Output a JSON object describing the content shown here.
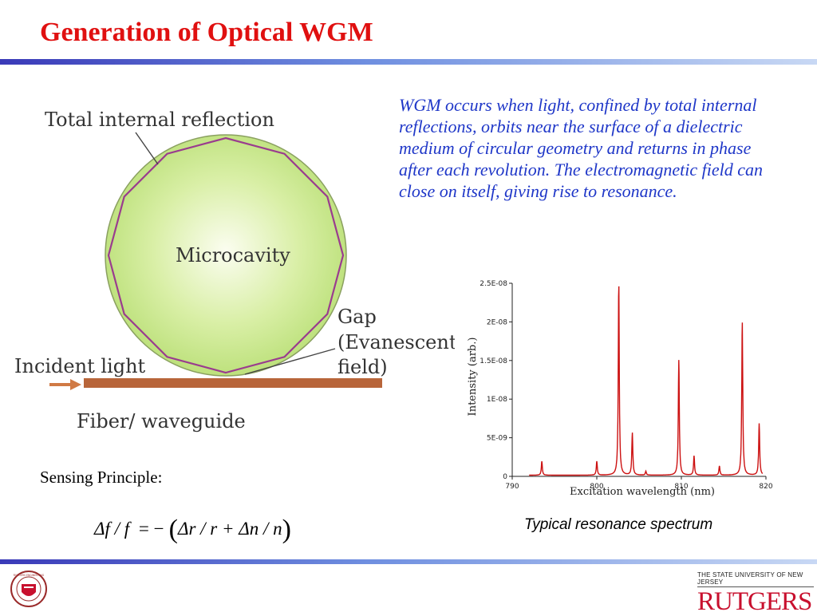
{
  "slide": {
    "title": "Generation of Optical WGM",
    "description": "WGM occurs when light, confined by total internal reflections, orbits near the surface of a dielectric medium of circular geometry and returns in phase after each revolution.  The electromagnetic field can close on itself, giving rise to resonance.",
    "sensing_label": "Sensing Principle:",
    "caption": "Typical resonance spectrum"
  },
  "diagram": {
    "tir_label": "Total internal reflection",
    "cavity_label": "Microcavity",
    "gap_label_1": "Gap",
    "gap_label_2": "(Evanescent",
    "gap_label_3": "field)",
    "incident_label": "Incident light",
    "fiber_label": "Fiber/ waveguide"
  },
  "formula": {
    "lhs": "Δf / f",
    "eq": "= −",
    "rhs": "Δr / r + Δn / n"
  },
  "chart_data": {
    "type": "line",
    "xlabel": "Excitation wavelength (nm)",
    "ylabel": "Intensity (arb.)",
    "xlim": [
      790,
      820
    ],
    "ylim": [
      0,
      2.5e-08
    ],
    "x_ticks": [
      "790",
      "800",
      "810",
      "820"
    ],
    "y_ticks": [
      "0",
      "5E-09",
      "1E-08",
      "1.5E-08",
      "2E-08",
      "2.5E-08"
    ],
    "series": [
      {
        "color": "#cc1111",
        "peaks": [
          {
            "x": 793.5,
            "y": 1.8e-09
          },
          {
            "x": 800.0,
            "y": 1.8e-09
          },
          {
            "x": 802.6,
            "y": 2.5e-08
          },
          {
            "x": 804.2,
            "y": 5.5e-09
          },
          {
            "x": 805.8,
            "y": 5e-10
          },
          {
            "x": 809.7,
            "y": 1.5e-08
          },
          {
            "x": 811.5,
            "y": 2.5e-09
          },
          {
            "x": 814.5,
            "y": 1.2e-09
          },
          {
            "x": 817.2,
            "y": 2e-08
          },
          {
            "x": 819.2,
            "y": 6.7e-09
          }
        ]
      }
    ]
  },
  "footer": {
    "logo_left": "RUTGERS ENGINEERING",
    "state_line": "THE STATE UNIVERSITY OF NEW JERSEY",
    "university_name": "RUTGERS"
  }
}
